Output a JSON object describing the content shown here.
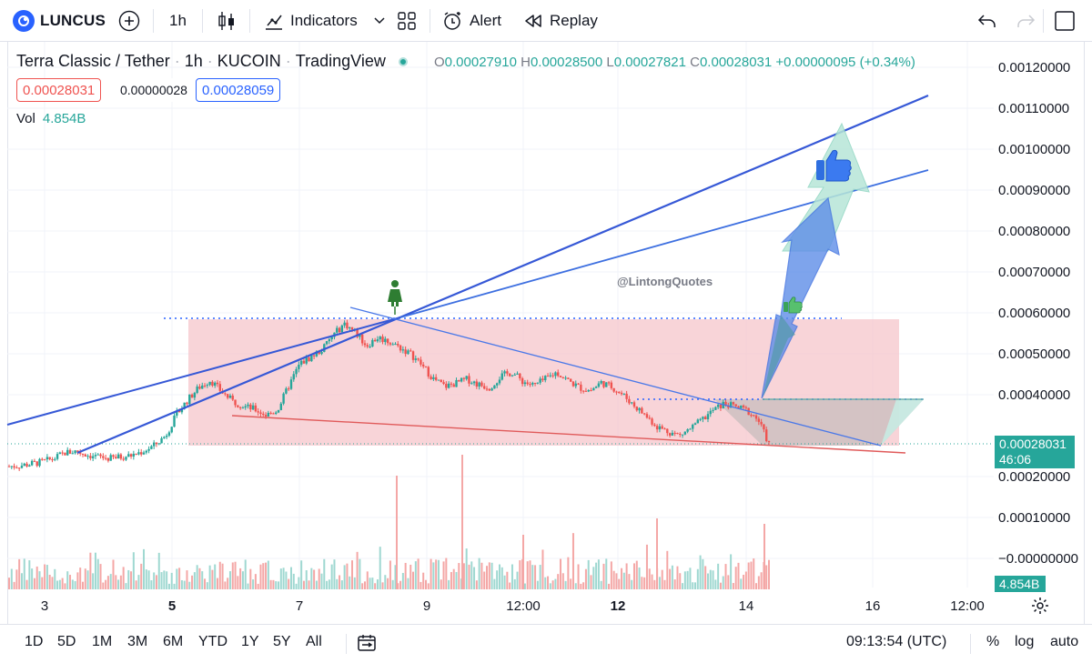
{
  "toolbar": {
    "symbol": "LUNCUS",
    "interval": "1h",
    "indicators_label": "Indicators",
    "alert_label": "Alert",
    "replay_label": "Replay"
  },
  "legend": {
    "title": "Terra Classic / Tether",
    "interval": "1h",
    "exchange": "KUCOIN",
    "source": "TradingView",
    "ohlc": {
      "o_key": "O",
      "o": "0.00027910",
      "h_key": "H",
      "h": "0.00028500",
      "l_key": "L",
      "l": "0.00027821",
      "c_key": "C",
      "c": "0.00028031",
      "change": "+0.00000095 (+0.34%)"
    },
    "bid": "0.00028031",
    "spread": "0.00000028",
    "ask": "0.00028059",
    "vol_key": "Vol",
    "vol_value": "4.854B"
  },
  "price_axis": {
    "labels": [
      "0.00120000",
      "0.00110000",
      "0.00100000",
      "0.00090000",
      "0.00080000",
      "0.00070000",
      "0.00060000",
      "0.00050000",
      "0.00040000",
      "0.00020000",
      "0.00010000",
      "−0.00000000"
    ],
    "current_price": "0.00028031",
    "countdown": "46:06",
    "volume_badge": "4.854B"
  },
  "time_axis": {
    "labels": [
      "3",
      "5",
      "7",
      "9",
      "12:00",
      "12",
      "14",
      "16",
      "12:00"
    ],
    "bold_labels": [
      "5",
      "12"
    ]
  },
  "watermark": "@LintongQuotes",
  "bottom_bar": {
    "ranges": [
      "1D",
      "5D",
      "1M",
      "3M",
      "6M",
      "YTD",
      "1Y",
      "5Y",
      "All"
    ],
    "clock": "09:13:54 (UTC)",
    "percent": "%",
    "log": "log",
    "auto": "auto"
  },
  "colors": {
    "up": "#26a69a",
    "down": "#ef5350",
    "accent": "#2962ff",
    "zone": "#f5c6cb"
  },
  "chart_data": {
    "type": "candlestick",
    "title": "Terra Classic / Tether",
    "ylim": [
      -1e-05,
      0.00125
    ],
    "key_levels": {
      "top_dotted": 0.000587,
      "mid_dotted": 0.000385,
      "current": 0.00028031
    },
    "close_path": [
      0.000225,
      0.000227,
      0.000231,
      0.000236,
      0.000244,
      0.000258,
      0.000262,
      0.000253,
      0.000248,
      0.000244,
      0.000248,
      0.000252,
      0.000262,
      0.000276,
      0.0003,
      0.000352,
      0.000388,
      0.000418,
      0.000436,
      0.000408,
      0.000384,
      0.000372,
      0.000364,
      0.00035,
      0.000362,
      0.00042,
      0.000475,
      0.000492,
      0.00051,
      0.000545,
      0.000574,
      0.000552,
      0.00052,
      0.00054,
      0.00053,
      0.000515,
      0.000498,
      0.00047,
      0.000438,
      0.00042,
      0.000428,
      0.000438,
      0.000425,
      0.000418,
      0.000445,
      0.000455,
      0.000432,
      0.000422,
      0.000438,
      0.000455,
      0.000435,
      0.000418,
      0.00041,
      0.00043,
      0.000418,
      0.000398,
      0.000372,
      0.000348,
      0.000322,
      0.00031,
      0.0003,
      0.000318,
      0.000338,
      0.000362,
      0.000378,
      0.00037,
      0.000362,
      0.00034,
      0.00028
    ]
  }
}
